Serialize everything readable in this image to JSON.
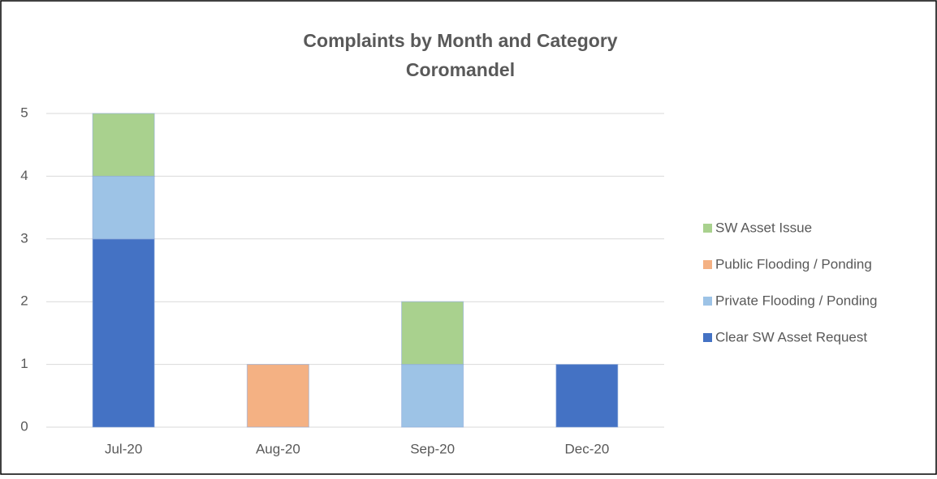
{
  "chart_data": {
    "type": "stacked_bar",
    "title": "Complaints by Month and Category",
    "subtitle": "Coromandel",
    "categories": [
      "Jul-20",
      "Aug-20",
      "Sep-20",
      "Dec-20"
    ],
    "series": [
      {
        "name": "Clear SW Asset Request",
        "color": "#4472c4",
        "values": [
          3,
          0,
          0,
          1
        ]
      },
      {
        "name": "Private Flooding / Ponding",
        "color": "#9dc3e6",
        "values": [
          1,
          0,
          1,
          0
        ]
      },
      {
        "name": "Public Flooding / Ponding",
        "color": "#f4b183",
        "values": [
          0,
          1,
          0,
          0
        ]
      },
      {
        "name": "SW Asset Issue",
        "color": "#a9d18e",
        "values": [
          1,
          0,
          1,
          0
        ]
      }
    ],
    "ylim": [
      0,
      5
    ],
    "yticks": [
      0,
      1,
      2,
      3,
      4,
      5
    ],
    "grid": true,
    "legend": "right"
  }
}
